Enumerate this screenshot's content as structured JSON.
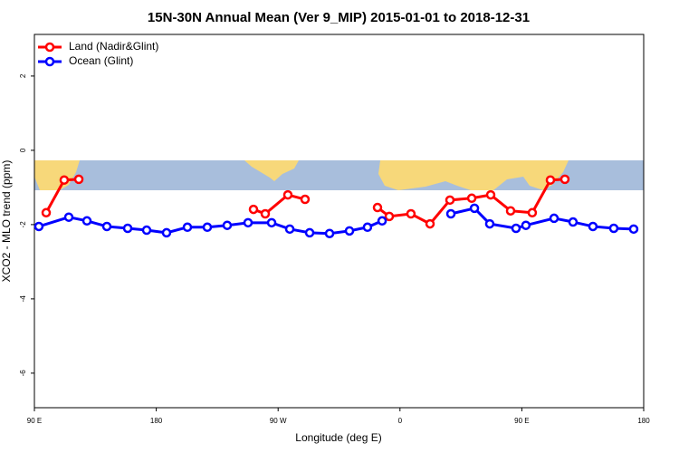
{
  "chart_data": {
    "type": "line",
    "title": "15N-30N Annual Mean (Ver 9_MIP)   2015-01-01 to 2018-12-31",
    "xlabel": "Longitude (deg E)",
    "ylabel": "XCO2 - MLO trend (ppm)",
    "xlim": [
      90,
      540
    ],
    "ylim": [
      -6.93,
      3.12
    ],
    "xticks": [
      {
        "value": 90,
        "label": "90 E"
      },
      180,
      {
        "value": 270,
        "label": "90 W"
      },
      {
        "value": 360,
        "label": "0"
      },
      {
        "value": 450,
        "label": "90 E"
      },
      {
        "value": 540,
        "label": "180"
      }
    ],
    "yticks": [
      -6,
      -4,
      -2,
      0,
      2
    ],
    "legend": "top-left",
    "series": [
      {
        "name": "Land (Nadir&Glint)",
        "color": "#ff0000",
        "x": [
          98.7,
          112,
          122.8,
          null,
          251.8,
          260.5,
          277.2,
          289.9,
          null,
          343.4,
          352.1,
          368.1,
          382.2,
          396.9,
          413,
          427,
          441.7,
          457.7,
          471.1,
          481.8
        ],
        "values": [
          -1.68,
          -0.8,
          -0.78,
          null,
          -1.59,
          -1.71,
          -1.2,
          -1.32,
          null,
          -1.54,
          -1.78,
          -1.71,
          -1.98,
          -1.34,
          -1.29,
          -1.2,
          -1.63,
          -1.68,
          -0.8,
          -0.78
        ]
      },
      {
        "name": "Ocean (Glint)",
        "color": "#0000ff",
        "x": [
          93.3,
          115.4,
          128.8,
          143.5,
          158.9,
          172.9,
          187.6,
          203,
          217.7,
          232.4,
          247.8,
          265.2,
          278.6,
          293.3,
          308,
          322.7,
          336,
          346.8,
          null,
          397.6,
          415,
          426.3,
          445.7,
          453,
          473.8,
          487.8,
          502.5,
          517.9,
          532.6
        ],
        "values": [
          -2.05,
          -1.8,
          -1.9,
          -2.05,
          -2.1,
          -2.15,
          -2.22,
          -2.07,
          -2.07,
          -2.02,
          -1.95,
          -1.95,
          -2.12,
          -2.22,
          -2.24,
          -2.17,
          -2.07,
          -1.9,
          null,
          -1.71,
          -1.56,
          -1.98,
          -2.1,
          -2.02,
          -1.83,
          -1.93,
          -2.05,
          -2.1,
          -2.12
        ]
      }
    ]
  }
}
